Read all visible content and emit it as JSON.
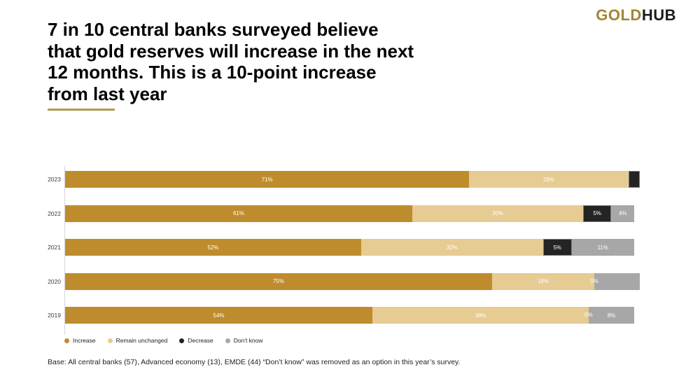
{
  "logo": {
    "gold": "GOLD",
    "hub": "HUB"
  },
  "title": {
    "lines": [
      "7 in 10 central banks surveyed believe",
      "that gold reserves will increase in the next",
      "12 months. This is a 10-point increase",
      "from last year"
    ]
  },
  "footnote": "Base: All central banks (57), Advanced economy (13), EMDE (44) “Don’t know” was removed as an option in this year’s survey.",
  "colors": {
    "increase": "#BE8C2D",
    "remain_unchanged": "#E6CB92",
    "decrease": "#242424",
    "dont_know": "#A7A7A7",
    "logo_gold": "#A28536",
    "underline": "#B49B4D",
    "axis": "#D6D6D6"
  },
  "legend": [
    {
      "key": "increase",
      "label": "Increase"
    },
    {
      "key": "remain_unchanged",
      "label": "Remain unchanged"
    },
    {
      "key": "decrease",
      "label": "Decrease"
    },
    {
      "key": "dont_know",
      "label": "Don't know"
    }
  ],
  "chart_data": {
    "type": "bar",
    "orientation": "horizontal",
    "stacked": true,
    "unit": "%",
    "x_max": 100,
    "grid": false,
    "legend_position": "bottom",
    "categories": [
      "2023",
      "2022",
      "2021",
      "2020",
      "2019"
    ],
    "series": [
      {
        "name": "Increase",
        "key": "increase",
        "values": [
          71,
          61,
          52,
          75,
          54
        ],
        "labels": [
          "71%",
          "61%",
          "52%",
          "75%",
          "54%"
        ]
      },
      {
        "name": "Remain unchanged",
        "key": "remain_unchanged",
        "values": [
          28,
          30,
          32,
          18,
          38
        ],
        "labels": [
          "28%",
          "30%",
          "32%",
          "18%",
          "38%"
        ]
      },
      {
        "name": "Decrease",
        "key": "decrease",
        "values": [
          2,
          5,
          5,
          0,
          0
        ],
        "labels": [
          "",
          "5%",
          "5%",
          "0%",
          "0%"
        ]
      },
      {
        "name": "Don't know",
        "key": "dont_know",
        "values": [
          0,
          4,
          11,
          8,
          8
        ],
        "labels": [
          "",
          "4%",
          "11%",
          "",
          "8%"
        ]
      }
    ]
  }
}
